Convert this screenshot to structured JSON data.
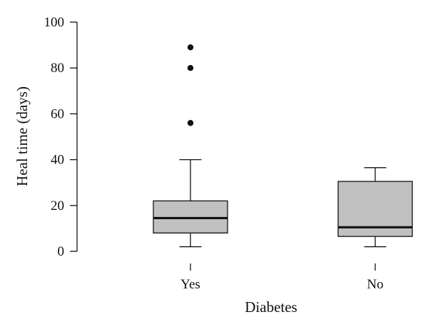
{
  "chart_data": {
    "type": "boxplot",
    "xlabel": "Diabetes",
    "ylabel": "Heal time (days)",
    "ylim": [
      0,
      100
    ],
    "yticks": [
      0,
      20,
      40,
      60,
      80,
      100
    ],
    "categories": [
      "Yes",
      "No"
    ],
    "boxes": [
      {
        "category": "Yes",
        "whisker_low": 2,
        "q1": 8,
        "median": 14.5,
        "q3": 22,
        "whisker_high": 40,
        "outliers": [
          56,
          80,
          89
        ]
      },
      {
        "category": "No",
        "whisker_low": 2,
        "q1": 6.5,
        "median": 10.5,
        "q3": 30.5,
        "whisker_high": 36.5,
        "outliers": []
      }
    ],
    "box_fill": "#c0c0c0",
    "line_color": "#111111",
    "grid": false
  }
}
